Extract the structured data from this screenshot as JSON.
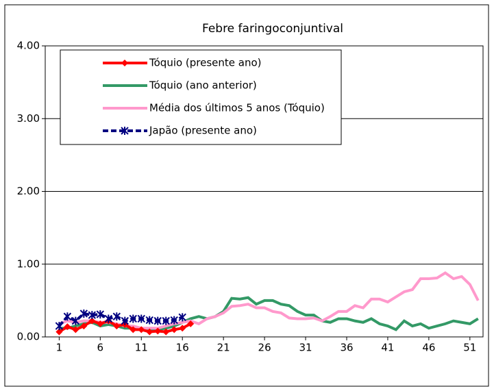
{
  "chart_data": {
    "type": "line",
    "title": "Febre faringoconjuntival",
    "x": [
      1,
      2,
      3,
      4,
      5,
      6,
      7,
      8,
      9,
      10,
      11,
      12,
      13,
      14,
      15,
      16,
      17,
      18,
      19,
      20,
      21,
      22,
      23,
      24,
      25,
      26,
      27,
      28,
      29,
      30,
      31,
      32,
      33,
      34,
      35,
      36,
      37,
      38,
      39,
      40,
      41,
      42,
      43,
      44,
      45,
      46,
      47,
      48,
      49,
      50,
      51,
      52
    ],
    "xlim": [
      -0.7,
      52.6
    ],
    "xticks": [
      1,
      6,
      11,
      16,
      21,
      26,
      31,
      36,
      41,
      46,
      51
    ],
    "ylim": [
      0,
      4
    ],
    "yticks": [
      {
        "value": 0,
        "label": "0.00"
      },
      {
        "value": 1,
        "label": "1.00"
      },
      {
        "value": 2,
        "label": "2.00"
      },
      {
        "value": 3,
        "label": "3.00"
      },
      {
        "value": 4,
        "label": "4.00"
      }
    ],
    "grid": true,
    "legend": "upper left",
    "series": [
      {
        "name": "Tóquio (presente ano)",
        "color": "#ff0000",
        "marker": "diamond",
        "values": [
          0.07,
          0.14,
          0.1,
          0.15,
          0.22,
          0.18,
          0.22,
          0.15,
          0.17,
          0.1,
          0.1,
          0.07,
          0.08,
          0.07,
          0.1,
          0.12,
          0.18,
          null,
          null,
          null,
          null,
          null,
          null,
          null,
          null,
          null,
          null,
          null,
          null,
          null,
          null,
          null,
          null,
          null,
          null,
          null,
          null,
          null,
          null,
          null,
          null,
          null,
          null,
          null,
          null,
          null,
          null,
          null,
          null,
          null,
          null,
          null
        ]
      },
      {
        "name": "Tóquio (ano anterior)",
        "color": "#339966",
        "marker": "none",
        "values": [
          0.12,
          0.12,
          0.15,
          0.18,
          0.2,
          0.15,
          0.17,
          0.15,
          0.12,
          0.12,
          0.1,
          0.1,
          0.1,
          0.12,
          0.15,
          0.2,
          0.25,
          0.28,
          0.25,
          0.28,
          0.35,
          0.53,
          0.52,
          0.54,
          0.45,
          0.5,
          0.5,
          0.45,
          0.43,
          0.35,
          0.3,
          0.3,
          0.22,
          0.2,
          0.25,
          0.25,
          0.22,
          0.2,
          0.25,
          0.18,
          0.15,
          0.1,
          0.22,
          0.15,
          0.18,
          0.12,
          0.15,
          0.18,
          0.22,
          0.2,
          0.18,
          0.25
        ]
      },
      {
        "name": "Média dos últimos 5 anos (Tóquio)",
        "color": "#ff99cc",
        "marker": "none",
        "values": [
          0.18,
          0.22,
          0.2,
          0.22,
          0.22,
          0.2,
          0.2,
          0.18,
          0.15,
          0.15,
          0.12,
          0.12,
          0.12,
          0.15,
          0.18,
          0.2,
          0.22,
          0.18,
          0.25,
          0.28,
          0.33,
          0.42,
          0.43,
          0.45,
          0.4,
          0.4,
          0.35,
          0.33,
          0.26,
          0.25,
          0.25,
          0.26,
          0.22,
          0.28,
          0.35,
          0.35,
          0.43,
          0.4,
          0.52,
          0.52,
          0.48,
          0.55,
          0.62,
          0.65,
          0.8,
          0.8,
          0.81,
          0.88,
          0.8,
          0.83,
          0.72,
          0.5
        ]
      },
      {
        "name": "Japão (presente ano)",
        "color": "#000080",
        "marker": "star",
        "dash": true,
        "values": [
          0.15,
          0.28,
          0.22,
          0.32,
          0.3,
          0.31,
          0.25,
          0.28,
          0.22,
          0.25,
          0.25,
          0.23,
          0.22,
          0.22,
          0.23,
          0.27,
          null,
          null,
          null,
          null,
          null,
          null,
          null,
          null,
          null,
          null,
          null,
          null,
          null,
          null,
          null,
          null,
          null,
          null,
          null,
          null,
          null,
          null,
          null,
          null,
          null,
          null,
          null,
          null,
          null,
          null,
          null,
          null,
          null,
          null,
          null,
          null
        ]
      }
    ]
  }
}
